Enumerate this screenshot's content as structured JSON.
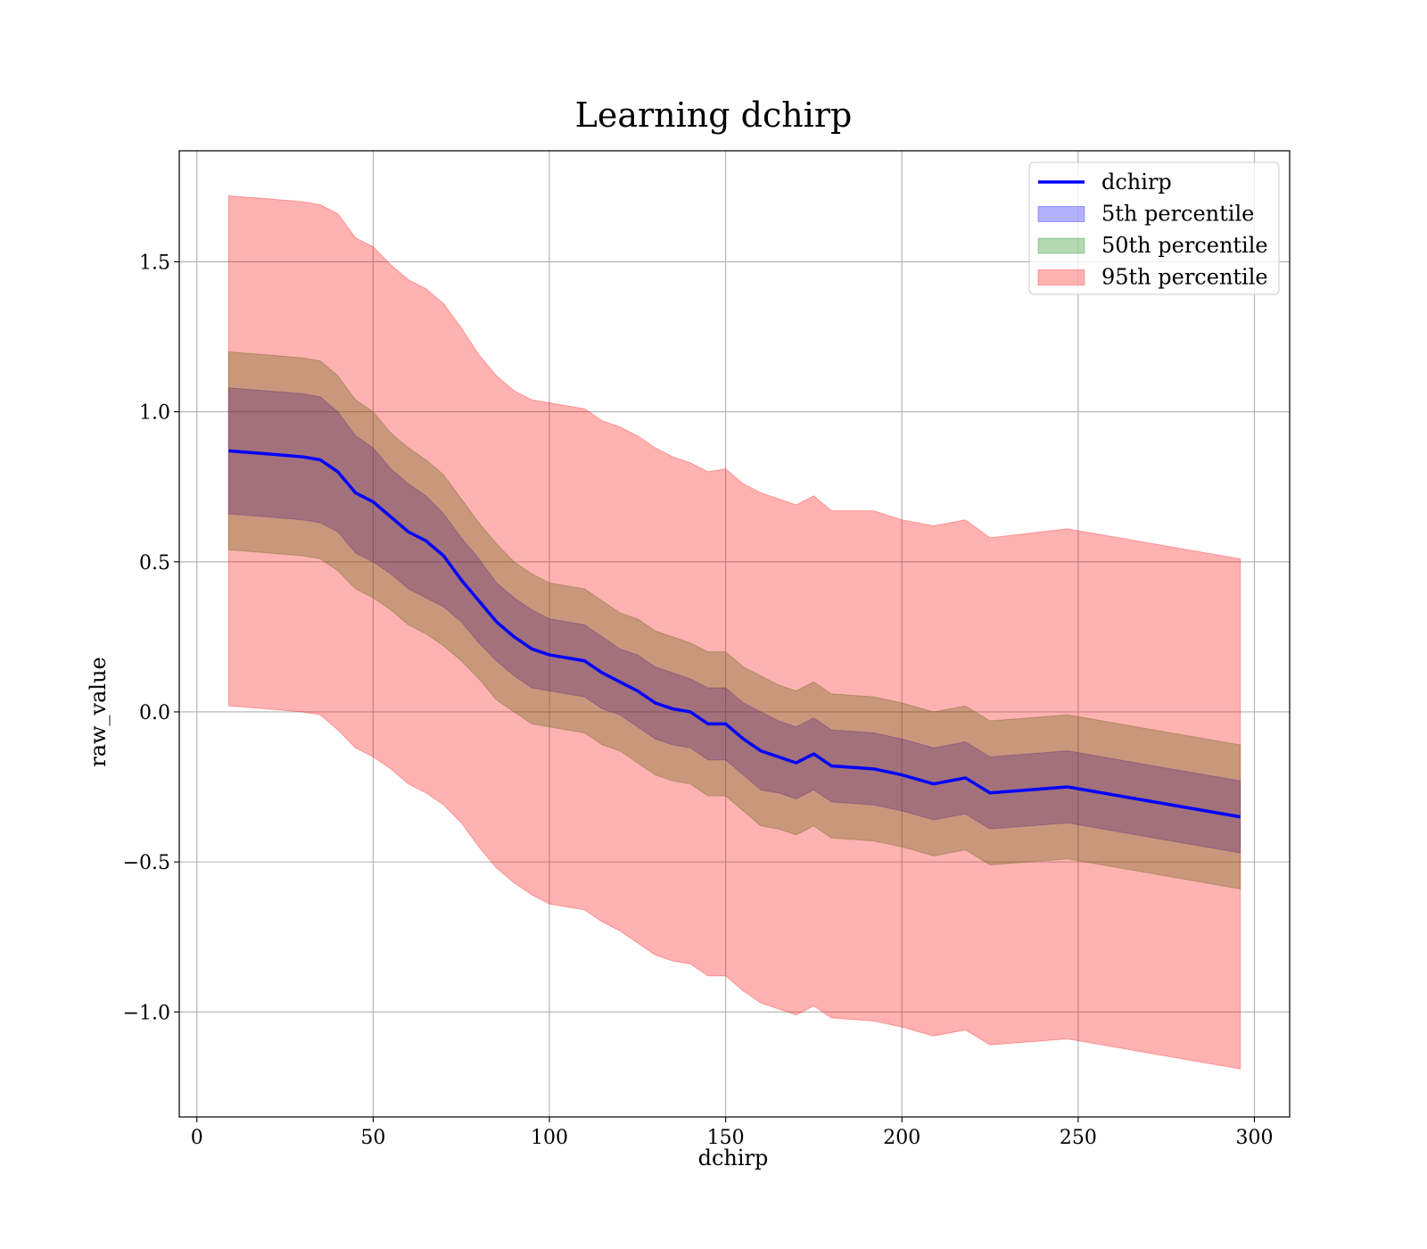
{
  "chart_data": {
    "type": "line",
    "title": "Learning dchirp",
    "xlabel": "dchirp",
    "ylabel": "raw_value",
    "xlim": [
      -5,
      310
    ],
    "ylim": [
      -1.35,
      1.87
    ],
    "grid": true,
    "legend_position": "top-right",
    "x_ticks": [
      0,
      50,
      100,
      150,
      200,
      250,
      300
    ],
    "x_tick_labels": [
      "0",
      "50",
      "100",
      "150",
      "200",
      "250",
      "300"
    ],
    "y_ticks": [
      -1.0,
      -0.5,
      0.0,
      0.5,
      1.0,
      1.5
    ],
    "y_tick_labels": [
      "−1.0",
      "−0.5",
      "0.0",
      "0.5",
      "1.0",
      "1.5"
    ],
    "x": [
      9,
      20,
      30,
      35,
      40,
      45,
      50,
      55,
      60,
      65,
      70,
      75,
      80,
      85,
      90,
      95,
      100,
      105,
      110,
      115,
      120,
      125,
      130,
      135,
      140,
      145,
      150,
      155,
      160,
      165,
      170,
      175,
      180,
      192,
      200,
      209,
      218,
      225,
      247,
      296
    ],
    "series": [
      {
        "name": "dchirp",
        "kind": "line",
        "color": "#0000ff",
        "values": [
          0.87,
          0.86,
          0.85,
          0.84,
          0.8,
          0.73,
          0.7,
          0.65,
          0.6,
          0.57,
          0.52,
          0.44,
          0.37,
          0.3,
          0.25,
          0.21,
          0.19,
          0.18,
          0.17,
          0.13,
          0.1,
          0.07,
          0.03,
          0.01,
          0.0,
          -0.04,
          -0.04,
          -0.09,
          -0.13,
          -0.15,
          -0.17,
          -0.14,
          -0.18,
          -0.19,
          -0.21,
          -0.24,
          -0.22,
          -0.27,
          -0.25,
          -0.35
        ]
      },
      {
        "name": "5th percentile",
        "kind": "band",
        "color": "#0000ff",
        "upper": [
          1.08,
          1.07,
          1.06,
          1.05,
          1.0,
          0.92,
          0.88,
          0.81,
          0.76,
          0.72,
          0.66,
          0.58,
          0.51,
          0.43,
          0.38,
          0.34,
          0.31,
          0.3,
          0.29,
          0.25,
          0.21,
          0.19,
          0.15,
          0.13,
          0.11,
          0.08,
          0.08,
          0.03,
          0.0,
          -0.03,
          -0.05,
          -0.02,
          -0.06,
          -0.07,
          -0.09,
          -0.12,
          -0.1,
          -0.15,
          -0.13,
          -0.23
        ],
        "lower": [
          0.66,
          0.65,
          0.64,
          0.63,
          0.6,
          0.53,
          0.5,
          0.46,
          0.41,
          0.38,
          0.35,
          0.3,
          0.23,
          0.17,
          0.12,
          0.08,
          0.07,
          0.06,
          0.05,
          0.01,
          -0.01,
          -0.05,
          -0.09,
          -0.11,
          -0.12,
          -0.16,
          -0.16,
          -0.21,
          -0.26,
          -0.27,
          -0.29,
          -0.26,
          -0.3,
          -0.31,
          -0.33,
          -0.36,
          -0.34,
          -0.39,
          -0.37,
          -0.47
        ]
      },
      {
        "name": "50th percentile",
        "kind": "band",
        "color": "#008000",
        "upper": [
          1.2,
          1.19,
          1.18,
          1.17,
          1.12,
          1.04,
          1.0,
          0.93,
          0.88,
          0.84,
          0.79,
          0.71,
          0.63,
          0.56,
          0.5,
          0.46,
          0.43,
          0.42,
          0.41,
          0.37,
          0.33,
          0.31,
          0.27,
          0.25,
          0.23,
          0.2,
          0.2,
          0.15,
          0.12,
          0.09,
          0.07,
          0.1,
          0.06,
          0.05,
          0.03,
          0.0,
          0.02,
          -0.03,
          -0.01,
          -0.11
        ],
        "lower": [
          0.54,
          0.53,
          0.52,
          0.51,
          0.47,
          0.41,
          0.38,
          0.34,
          0.29,
          0.26,
          0.22,
          0.17,
          0.11,
          0.04,
          0.0,
          -0.04,
          -0.05,
          -0.06,
          -0.07,
          -0.11,
          -0.13,
          -0.17,
          -0.21,
          -0.23,
          -0.24,
          -0.28,
          -0.28,
          -0.33,
          -0.38,
          -0.39,
          -0.41,
          -0.38,
          -0.42,
          -0.43,
          -0.45,
          -0.48,
          -0.46,
          -0.51,
          -0.49,
          -0.59
        ]
      },
      {
        "name": "95th percentile",
        "kind": "band",
        "color": "#ff0000",
        "upper": [
          1.72,
          1.71,
          1.7,
          1.69,
          1.66,
          1.58,
          1.55,
          1.49,
          1.44,
          1.41,
          1.36,
          1.28,
          1.19,
          1.12,
          1.07,
          1.04,
          1.03,
          1.02,
          1.01,
          0.97,
          0.95,
          0.92,
          0.88,
          0.85,
          0.83,
          0.8,
          0.81,
          0.76,
          0.73,
          0.71,
          0.69,
          0.72,
          0.67,
          0.67,
          0.64,
          0.62,
          0.64,
          0.58,
          0.61,
          0.51
        ],
        "lower": [
          0.02,
          0.01,
          0.0,
          -0.01,
          -0.06,
          -0.12,
          -0.15,
          -0.19,
          -0.24,
          -0.27,
          -0.31,
          -0.37,
          -0.45,
          -0.52,
          -0.57,
          -0.61,
          -0.64,
          -0.65,
          -0.66,
          -0.7,
          -0.73,
          -0.77,
          -0.81,
          -0.83,
          -0.84,
          -0.88,
          -0.88,
          -0.93,
          -0.97,
          -0.99,
          -1.01,
          -0.98,
          -1.02,
          -1.03,
          -1.05,
          -1.08,
          -1.06,
          -1.11,
          -1.09,
          -1.19
        ]
      }
    ]
  }
}
